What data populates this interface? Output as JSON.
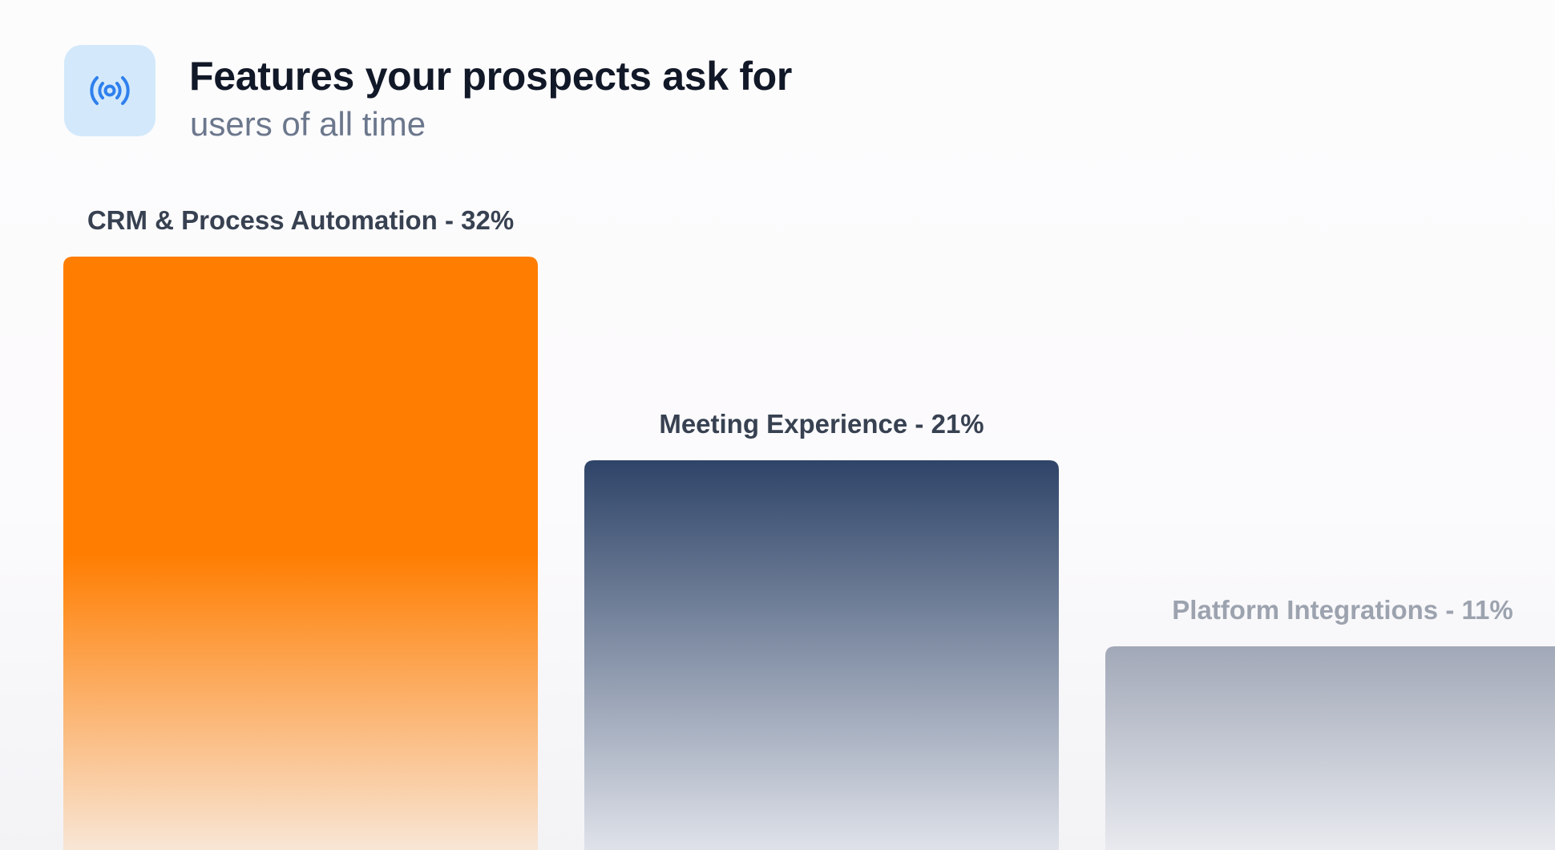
{
  "header": {
    "icon": "broadcast-signal-icon",
    "title": "Features your prospects ask for",
    "subtitle": "users of all time"
  },
  "colors": {
    "icon_tile": "#d3e9fb",
    "icon": "#2f80ed",
    "title": "#111827",
    "subtitle": "#6b778c"
  },
  "chart_data": {
    "type": "bar",
    "title": "Features your prospects ask for",
    "subtitle": "users of all time",
    "categories": [
      "CRM & Process Automation",
      "Meeting Experience",
      "Platform Integrations"
    ],
    "values": [
      32,
      21,
      11
    ],
    "unit": "%",
    "labels": [
      "CRM & Process Automation - 32%",
      "Meeting Experience - 21%",
      "Platform Integrations - 11%"
    ],
    "colors": [
      "#ff7d00",
      "#2e4468",
      "#a1a8b7"
    ],
    "label_colors": [
      "#374151",
      "#374151",
      "#9ca3af"
    ],
    "grid": false,
    "legend": "none"
  }
}
